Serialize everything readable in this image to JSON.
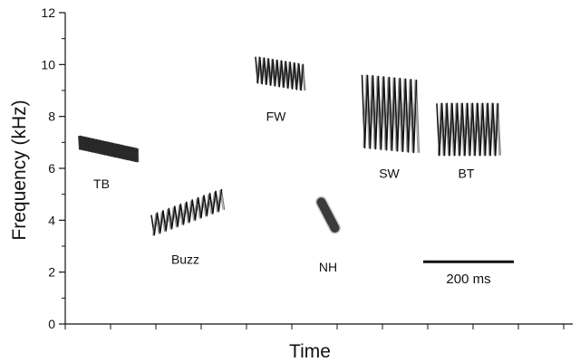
{
  "chart_data": {
    "type": "scatter",
    "xlabel": "Time",
    "ylabel": "Frequency (kHz)",
    "ylim": [
      0,
      12
    ],
    "yticks": [
      0,
      2,
      4,
      6,
      8,
      10,
      12
    ],
    "x_unit": "ms",
    "xlim": [
      0,
      1120
    ],
    "grid": false,
    "scale_bar": {
      "label": "200 ms",
      "duration_ms": 200,
      "start_ms": 790,
      "frequency_khz": 2.4
    },
    "series": [
      {
        "name": "TB",
        "kind": "trill",
        "start_ms": 30,
        "end_ms": 160,
        "f_start_khz": 7.0,
        "f_end_khz": 6.5,
        "bandwidth_khz": 0.5,
        "cycles": 40,
        "label_ms": 80,
        "label_khz": 5.4
      },
      {
        "name": "Buzz",
        "kind": "trill",
        "start_ms": 190,
        "end_ms": 345,
        "f_start_khz": 3.8,
        "f_end_khz": 4.8,
        "bandwidth_khz": 0.8,
        "cycles": 12,
        "label_ms": 265,
        "label_khz": 2.5
      },
      {
        "name": "FW",
        "kind": "trill",
        "start_ms": 420,
        "end_ms": 525,
        "f_start_khz": 9.8,
        "f_end_khz": 9.5,
        "bandwidth_khz": 1.0,
        "cycles": 11,
        "label_ms": 465,
        "label_khz": 8.0
      },
      {
        "name": "NH",
        "kind": "sweep",
        "start_ms": 565,
        "end_ms": 595,
        "f_start_khz": 4.7,
        "f_end_khz": 3.7,
        "bandwidth_khz": 0.35,
        "cycles": 0,
        "label_ms": 580,
        "label_khz": 2.2
      },
      {
        "name": "SW",
        "kind": "trill",
        "start_ms": 655,
        "end_ms": 775,
        "f_start_khz": 8.2,
        "f_end_khz": 8.0,
        "bandwidth_khz": 2.8,
        "cycles": 10,
        "label_ms": 715,
        "label_khz": 5.8
      },
      {
        "name": "BT",
        "kind": "trill",
        "start_ms": 820,
        "end_ms": 955,
        "f_start_khz": 7.5,
        "f_end_khz": 7.5,
        "bandwidth_khz": 2.0,
        "cycles": 12,
        "label_ms": 885,
        "label_khz": 5.8
      }
    ],
    "colors": {
      "ink": "#111111",
      "trace_dark": "#0a0a0a",
      "trace_grey": "#6b6b6b"
    }
  }
}
